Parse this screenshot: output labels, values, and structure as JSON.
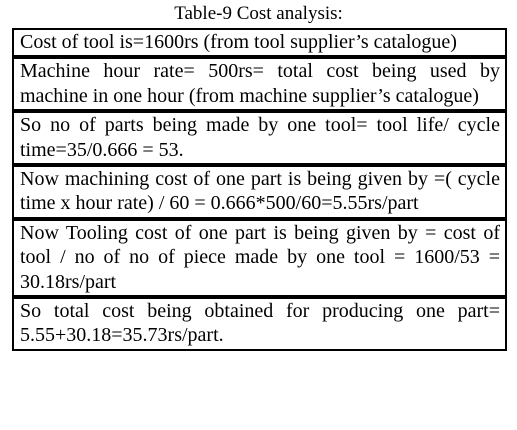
{
  "title": "Table-9 Cost analysis:",
  "table": {
    "rows": [
      "Cost of tool is=1600rs (from tool supplier’s catalogue)",
      "Machine hour rate= 500rs= total cost being used by machine in one hour (from machine supplier’s catalogue)",
      "So no of parts being made by one tool= tool life/ cycle time=35/0.666 = 53.",
      "Now machining cost of one part is being given by =( cycle time x hour rate) / 60 = 0.666*500/60=5.55rs/part",
      "Now Tooling cost of one part is being given by = cost of tool / no of no of piece made by one tool = 1600/53 = 30.18rs/part",
      "So total cost being obtained for producing one part= 5.55+30.18=35.73rs/part."
    ]
  }
}
